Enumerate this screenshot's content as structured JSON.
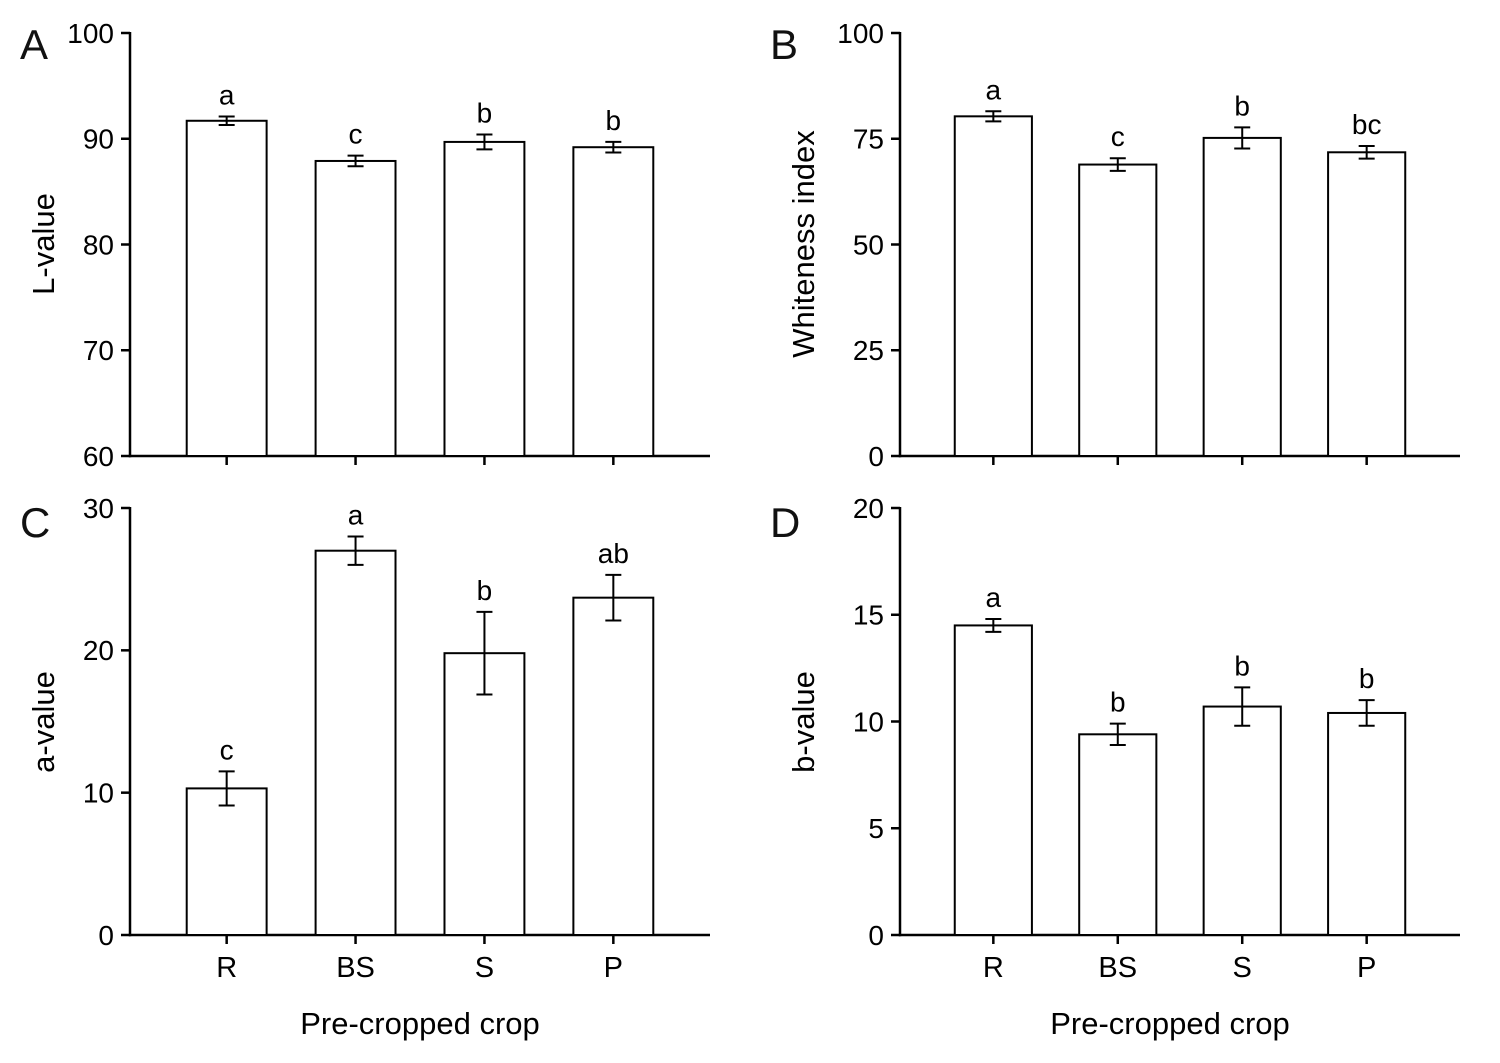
{
  "colors": {
    "background": "#ffffff",
    "bar_fill": "#ffffff",
    "bar_stroke": "#000000",
    "axis": "#000000"
  },
  "chart_data": [
    {
      "type": "bar",
      "panel": "A",
      "ylabel": "L-value",
      "xlabel": "",
      "categories": [
        "R",
        "BS",
        "S",
        "P"
      ],
      "values": [
        91.7,
        87.9,
        89.7,
        89.2
      ],
      "errors": [
        0.4,
        0.5,
        0.7,
        0.5
      ],
      "letters": [
        "a",
        "c",
        "b",
        "b"
      ],
      "ylim": [
        60,
        100
      ],
      "yticks": [
        60,
        70,
        80,
        90,
        100
      ],
      "x_tick_labels_visible": false,
      "grid": false,
      "legend": "none"
    },
    {
      "type": "bar",
      "panel": "B",
      "ylabel": "Whiteness index",
      "xlabel": "",
      "categories": [
        "R",
        "BS",
        "S",
        "P"
      ],
      "values": [
        80.3,
        68.9,
        75.2,
        71.8
      ],
      "errors": [
        1.2,
        1.5,
        2.5,
        1.5
      ],
      "letters": [
        "a",
        "c",
        "b",
        "bc"
      ],
      "ylim": [
        0,
        100
      ],
      "yticks": [
        0,
        25,
        50,
        75,
        100
      ],
      "x_tick_labels_visible": false,
      "grid": false,
      "legend": "none"
    },
    {
      "type": "bar",
      "panel": "C",
      "ylabel": "a-value",
      "xlabel": "Pre-cropped crop",
      "categories": [
        "R",
        "BS",
        "S",
        "P"
      ],
      "values": [
        10.3,
        27.0,
        19.8,
        23.7
      ],
      "errors": [
        1.2,
        1.0,
        2.9,
        1.6
      ],
      "letters": [
        "c",
        "a",
        "b",
        "ab"
      ],
      "ylim": [
        0,
        30
      ],
      "yticks": [
        0,
        10,
        20,
        30
      ],
      "x_tick_labels_visible": true,
      "grid": false,
      "legend": "none"
    },
    {
      "type": "bar",
      "panel": "D",
      "ylabel": "b-value",
      "xlabel": "Pre-cropped crop",
      "categories": [
        "R",
        "BS",
        "S",
        "P"
      ],
      "values": [
        14.5,
        9.4,
        10.7,
        10.4
      ],
      "errors": [
        0.3,
        0.5,
        0.9,
        0.6
      ],
      "letters": [
        "a",
        "b",
        "b",
        "b"
      ],
      "ylim": [
        0,
        20
      ],
      "yticks": [
        0,
        5,
        10,
        15,
        20
      ],
      "x_tick_labels_visible": true,
      "grid": false,
      "legend": "none"
    }
  ]
}
